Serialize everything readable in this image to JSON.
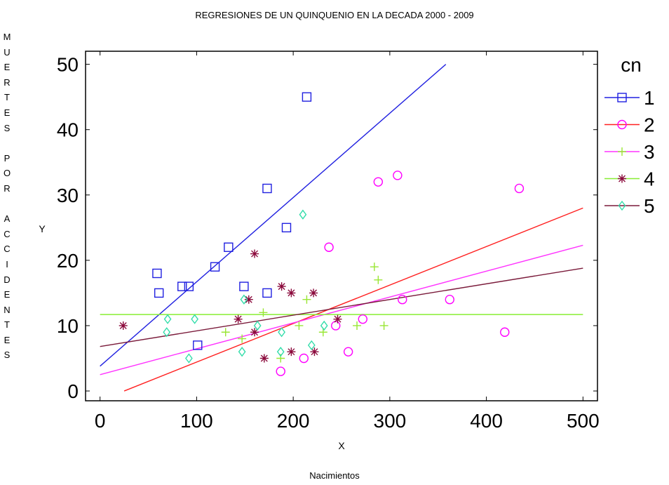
{
  "chart_data": {
    "type": "scatter",
    "title": "REGRESIONES DE UN QUINQUENIO EN LA DECADA 2000 - 2009",
    "side_label": "MUERTES POR ACCIDENTES",
    "bottom_label": "Nacimientos",
    "xlabel": "X",
    "ylabel": "Y",
    "xlim": [
      -15,
      515
    ],
    "ylim": [
      -1.5,
      52
    ],
    "x_ticks": [
      0,
      100,
      200,
      300,
      400,
      500
    ],
    "y_ticks": [
      0,
      10,
      20,
      30,
      40,
      50
    ],
    "legend_title": "cn",
    "legend_position": "right",
    "series": [
      {
        "name": "1",
        "color": "#2020e0",
        "marker": "square",
        "points": [
          [
            59,
            18
          ],
          [
            61,
            15
          ],
          [
            85,
            16
          ],
          [
            92,
            16
          ],
          [
            101,
            7
          ],
          [
            119,
            19
          ],
          [
            133,
            22
          ],
          [
            149,
            16
          ],
          [
            173,
            15
          ],
          [
            173,
            31
          ],
          [
            193,
            25
          ],
          [
            214,
            45
          ]
        ],
        "line": [
          [
            0,
            3.8
          ],
          [
            358,
            50
          ]
        ]
      },
      {
        "name": "2",
        "color": "#ff00ff",
        "marker": "circle",
        "points": [
          [
            187,
            3
          ],
          [
            211,
            5
          ],
          [
            237,
            22
          ],
          [
            244,
            10
          ],
          [
            257,
            6
          ],
          [
            272,
            11
          ],
          [
            288,
            32
          ],
          [
            308,
            33
          ],
          [
            313,
            14
          ],
          [
            362,
            14
          ],
          [
            419,
            9
          ],
          [
            434,
            31
          ]
        ],
        "line": [
          [
            25,
            0
          ],
          [
            500,
            28
          ]
        ],
        "line_color": "#ff2020"
      },
      {
        "name": "3",
        "color": "#99e633",
        "marker": "plus",
        "points": [
          [
            130,
            9
          ],
          [
            147,
            8
          ],
          [
            169,
            12
          ],
          [
            187,
            5
          ],
          [
            206,
            10
          ],
          [
            214,
            14
          ],
          [
            231,
            9
          ],
          [
            266,
            10
          ],
          [
            284,
            19
          ],
          [
            288,
            17
          ],
          [
            294,
            10
          ]
        ],
        "line": [
          [
            0,
            2.5
          ],
          [
            500,
            22.3
          ]
        ],
        "line_color": "#ff33ff"
      },
      {
        "name": "4",
        "color": "#8b0a3c",
        "marker": "asterisk",
        "points": [
          [
            24,
            10
          ],
          [
            143,
            11
          ],
          [
            154,
            14
          ],
          [
            160,
            21
          ],
          [
            160,
            9
          ],
          [
            170,
            5
          ],
          [
            188,
            16
          ],
          [
            198,
            15
          ],
          [
            198,
            6
          ],
          [
            221,
            15
          ],
          [
            222,
            6
          ],
          [
            246,
            11
          ]
        ],
        "line": [
          [
            0,
            11.7
          ],
          [
            500,
            11.7
          ]
        ],
        "line_color": "#88ee33"
      },
      {
        "name": "5",
        "color": "#33ddaa",
        "marker": "diamond",
        "points": [
          [
            69,
            9
          ],
          [
            70,
            11
          ],
          [
            92,
            5
          ],
          [
            98,
            11
          ],
          [
            147,
            6
          ],
          [
            149,
            14
          ],
          [
            163,
            10
          ],
          [
            187,
            6
          ],
          [
            188,
            9
          ],
          [
            210,
            27
          ],
          [
            219,
            7
          ],
          [
            232,
            10
          ]
        ],
        "line": [
          [
            0,
            6.8
          ],
          [
            500,
            18.8
          ]
        ],
        "line_color": "#7a1a3a"
      }
    ]
  }
}
